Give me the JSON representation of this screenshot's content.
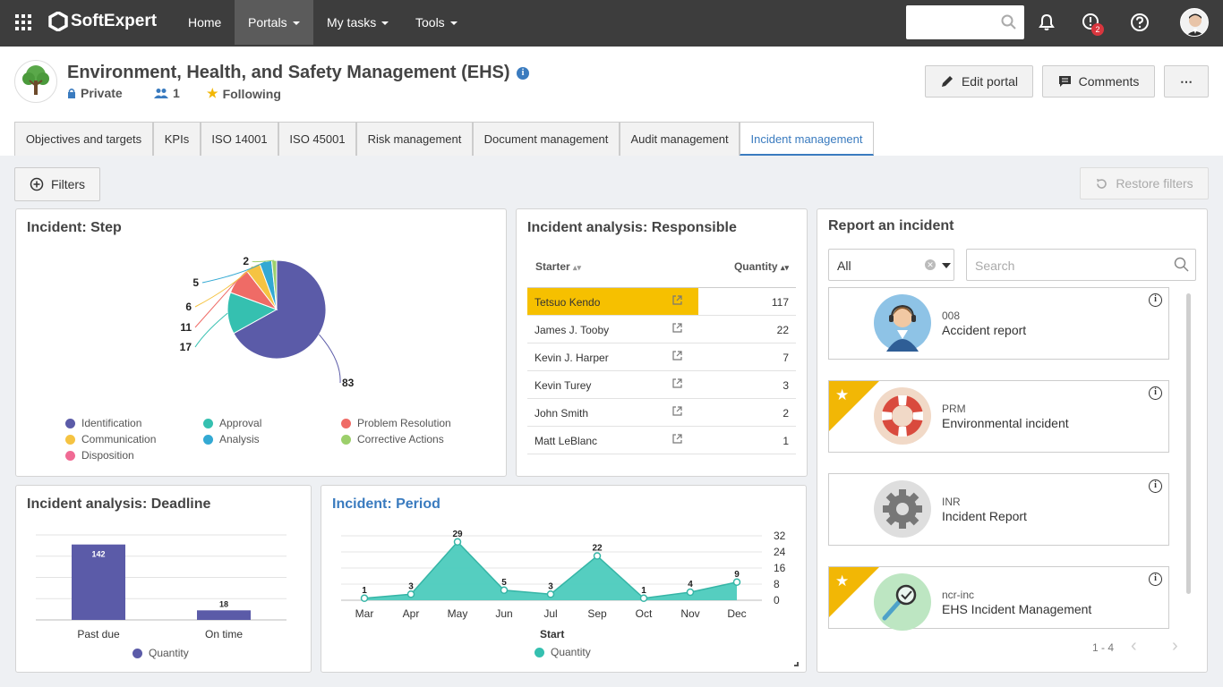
{
  "nav": {
    "brand": "SoftExpert",
    "items": [
      "Home",
      "Portals",
      "My tasks",
      "Tools"
    ],
    "notification_badge": "2"
  },
  "header": {
    "title": "Environment, Health, and Safety Management (EHS)",
    "privacy": "Private",
    "members": "1",
    "following": "Following",
    "edit_portal": "Edit portal",
    "comments": "Comments"
  },
  "tabs": [
    "Objectives and targets",
    "KPIs",
    "ISO 14001",
    "ISO 45001",
    "Risk management",
    "Document management",
    "Audit management",
    "Incident management"
  ],
  "toolbar": {
    "filters": "Filters",
    "restore_filters": "Restore filters"
  },
  "colors": {
    "accent": "#3a7bbf",
    "highlight": "#f6c000",
    "star": "#f2b705"
  },
  "step_chart": {
    "title": "Incident: Step",
    "chart_data": {
      "type": "pie",
      "title": "Incident: Step",
      "slices": [
        {
          "name": "Identification",
          "value": 83,
          "color": "#5b5ba8"
        },
        {
          "name": "Approval",
          "value": 17,
          "color": "#35c0b0"
        },
        {
          "name": "Problem Resolution",
          "value": 11,
          "color": "#ef6b66"
        },
        {
          "name": "Communication",
          "value": 6,
          "color": "#f5c342"
        },
        {
          "name": "Analysis",
          "value": 5,
          "color": "#33a9d3"
        },
        {
          "name": "Corrective Actions",
          "value": 2,
          "color": "#9ccf6b"
        },
        {
          "name": "Disposition",
          "value": 0,
          "color": "#f06a94"
        }
      ]
    }
  },
  "responsible": {
    "title": "Incident analysis: Responsible",
    "col_starter": "Starter",
    "col_quantity": "Quantity",
    "rows": [
      {
        "name": "Tetsuo Kendo",
        "qty": "117"
      },
      {
        "name": "James J. Tooby",
        "qty": "22"
      },
      {
        "name": "Kevin J. Harper",
        "qty": "7"
      },
      {
        "name": "Kevin Turey",
        "qty": "3"
      },
      {
        "name": "John Smith",
        "qty": "2"
      },
      {
        "name": "Matt LeBlanc",
        "qty": "1"
      }
    ]
  },
  "deadline": {
    "title": "Incident analysis: Deadline",
    "legend": "Quantity",
    "chart_data": {
      "type": "bar",
      "categories": [
        "Past due",
        "On time"
      ],
      "series": [
        {
          "name": "Quantity",
          "values": [
            142,
            18
          ]
        }
      ],
      "ylim": [
        0,
        160
      ]
    }
  },
  "period": {
    "title": "Incident: Period",
    "xlabel": "Start",
    "legend": "Quantity",
    "chart_data": {
      "type": "area",
      "categories": [
        "Mar",
        "Apr",
        "May",
        "Jun",
        "Jul",
        "Sep",
        "Oct",
        "Nov",
        "Dec"
      ],
      "series": [
        {
          "name": "Quantity",
          "values": [
            1,
            3,
            29,
            5,
            3,
            22,
            1,
            4,
            9
          ]
        }
      ],
      "yticks": [
        0,
        8,
        16,
        24,
        32
      ],
      "ylim": [
        0,
        32
      ]
    }
  },
  "report": {
    "title": "Report an incident",
    "select_value": "All",
    "search_placeholder": "Search",
    "pagination": "1 - 4",
    "cards": [
      {
        "code": "008",
        "name": "Accident report",
        "starred": false
      },
      {
        "code": "PRM",
        "name": "Environmental incident",
        "starred": true
      },
      {
        "code": "INR",
        "name": "Incident Report",
        "starred": false
      },
      {
        "code": "ncr-inc",
        "name": "EHS Incident Management",
        "starred": true
      }
    ]
  }
}
